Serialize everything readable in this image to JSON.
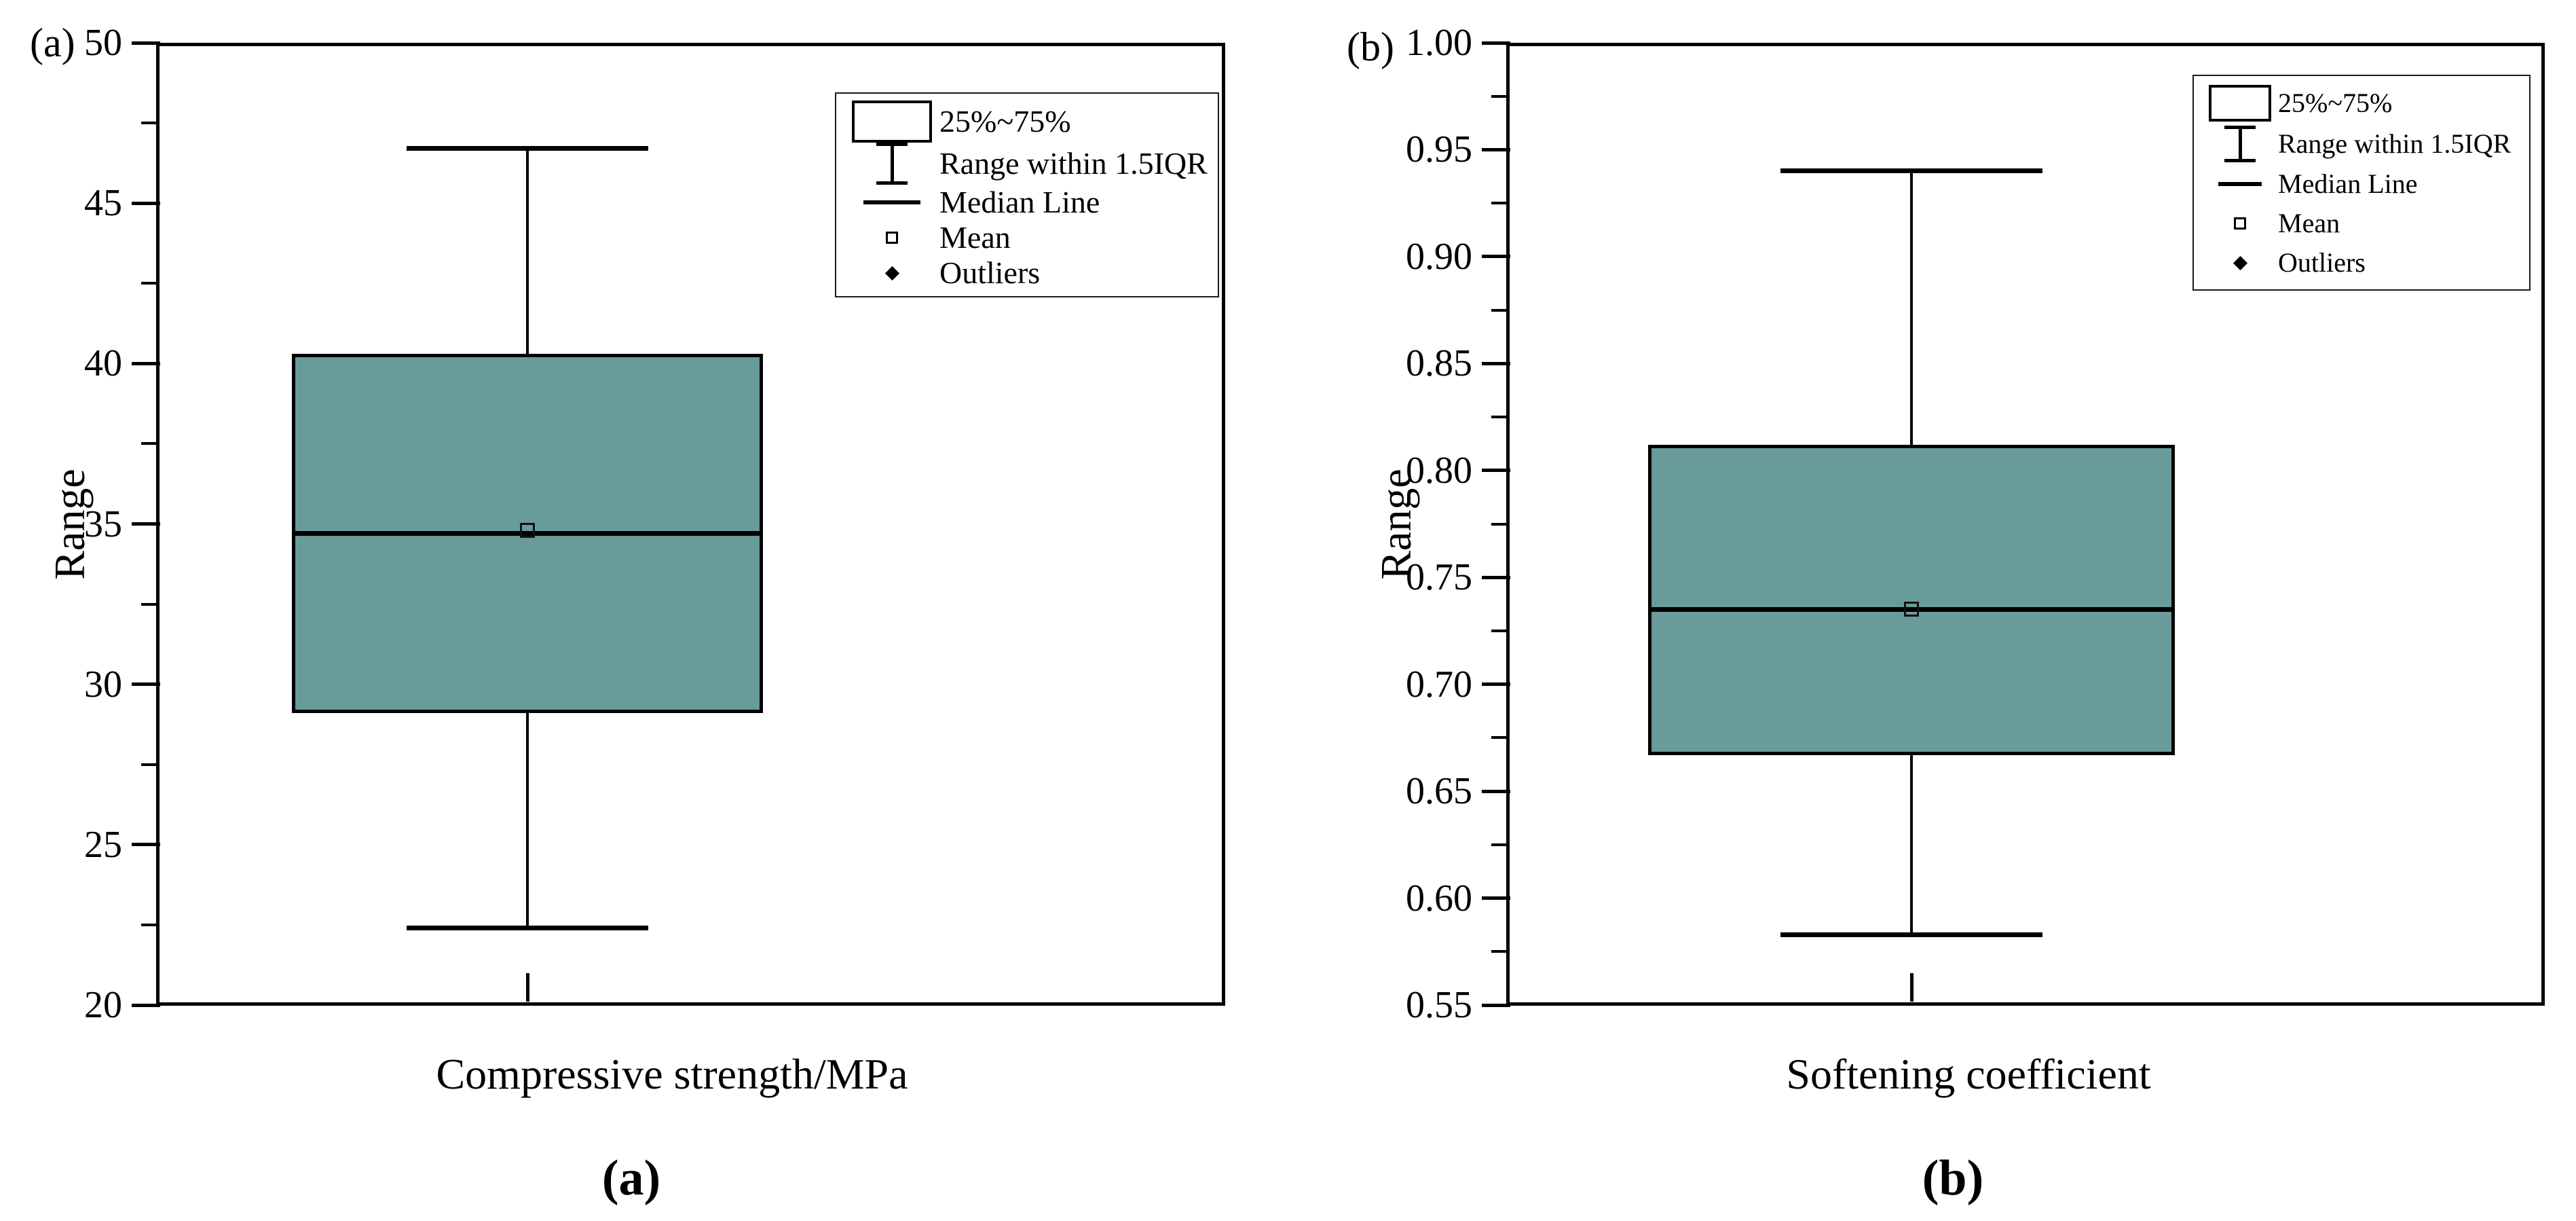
{
  "figure": {
    "colors": {
      "box_fill": "#699b9a",
      "line_color": "#000000",
      "background": "#ffffff"
    },
    "legend": {
      "position": "top-right",
      "items": [
        {
          "marker": "box-swatch",
          "label": "25%~75%"
        },
        {
          "marker": "whisker-ibeam",
          "label": "Range within 1.5IQR"
        },
        {
          "marker": "median-line",
          "label": "Median Line"
        },
        {
          "marker": "mean-square",
          "label": "Mean"
        },
        {
          "marker": "outlier-diamond",
          "label": "Outliers"
        }
      ]
    }
  },
  "chart_data": [
    {
      "type": "box",
      "panel_label": "(a)",
      "caption": "(a)",
      "x_label": "Compressive strength/MPa",
      "y_axis_title": "Range",
      "y_min": 20,
      "y_max": 50,
      "y_major_step": 5,
      "y_minor_step": 2.5,
      "grid": false,
      "y_ticks": [
        {
          "label": "20",
          "value": 20
        },
        {
          "label": "25",
          "value": 25
        },
        {
          "label": "30",
          "value": 30
        },
        {
          "label": "35",
          "value": 35
        },
        {
          "label": "40",
          "value": 40
        },
        {
          "label": "45",
          "value": 45
        },
        {
          "label": "50",
          "value": 50
        }
      ],
      "box": {
        "q1": 29.1,
        "median": 34.7,
        "q3": 40.3,
        "mean": 34.8,
        "whisker_low": 22.4,
        "whisker_high": 46.7,
        "outliers": []
      }
    },
    {
      "type": "box",
      "panel_label": "(b)",
      "caption": "(b)",
      "x_label": "Softening coefficient",
      "y_axis_title": "Range",
      "y_min": 0.55,
      "y_max": 1.0,
      "y_major_step": 0.05,
      "y_minor_step": 0.025,
      "grid": false,
      "y_ticks": [
        {
          "label": "0.55",
          "value": 0.55
        },
        {
          "label": "0.60",
          "value": 0.6
        },
        {
          "label": "0.65",
          "value": 0.65
        },
        {
          "label": "0.70",
          "value": 0.7
        },
        {
          "label": "0.75",
          "value": 0.75
        },
        {
          "label": "0.80",
          "value": 0.8
        },
        {
          "label": "0.85",
          "value": 0.85
        },
        {
          "label": "0.90",
          "value": 0.9
        },
        {
          "label": "0.95",
          "value": 0.95
        },
        {
          "label": "1.00",
          "value": 1.0
        }
      ],
      "box": {
        "q1": 0.667,
        "median": 0.735,
        "q3": 0.812,
        "mean": 0.735,
        "whisker_low": 0.583,
        "whisker_high": 0.94,
        "outliers": []
      }
    }
  ]
}
